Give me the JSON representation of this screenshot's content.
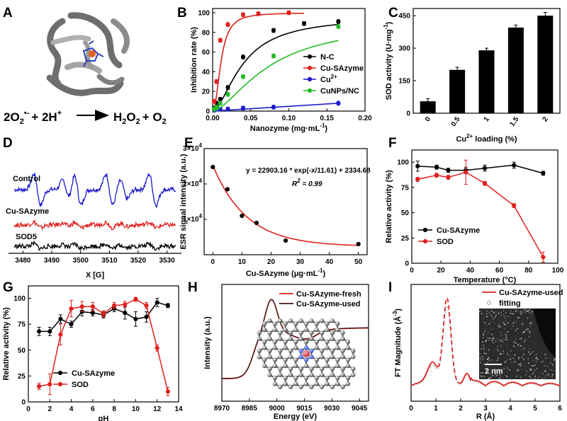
{
  "panel_letters": [
    "A",
    "B",
    "C",
    "D",
    "E",
    "F",
    "G",
    "H",
    "I"
  ],
  "colors": {
    "black": "#000000",
    "red": "#e0201e",
    "blue": "#1a1acc",
    "green": "#22bb22",
    "brown": "#4a1414",
    "grey": "#999999"
  },
  "panelA": {
    "equation": {
      "lhs_a": "2O",
      "lhs_a_sub": "2",
      "lhs_a_sup": "•-",
      "lhs_plus": "+ 2H",
      "lhs_b_sup": "+",
      "rhs_a": "H",
      "rhs_a_sub1": "2",
      "rhs_a_mid": "O",
      "rhs_a_sub2": "2",
      "rhs_plus": "+ O",
      "rhs_b_sub": "2"
    }
  },
  "chart_data": [
    {
      "id": "B",
      "type": "scatter",
      "xlabel": "Nanozyme (mg·mL",
      "xlabel_sup": "-1",
      "xlabel_end": ")",
      "ylabel": "Inhibition rate (%)",
      "xlim": [
        0,
        0.2
      ],
      "ylim": [
        0,
        100
      ],
      "xticks": [
        0.0,
        0.05,
        0.1,
        0.15,
        0.2
      ],
      "xtick_labels": [
        "0.00",
        "0.05",
        "0.10",
        "0.15",
        "0.20"
      ],
      "yticks": [
        0,
        20,
        40,
        60,
        80,
        100
      ],
      "ytick_labels": [
        "0",
        "20",
        "40",
        "60",
        "80",
        "100"
      ],
      "legend": [
        "N-C",
        "Cu-SAzyme",
        "Cu",
        "CuNPs/NC"
      ],
      "legend_sup": [
        "",
        "",
        "2+",
        ""
      ],
      "series": [
        {
          "name": "N-C",
          "color": "#000000",
          "x": [
            0.002,
            0.005,
            0.01,
            0.02,
            0.04,
            0.08,
            0.12,
            0.165
          ],
          "y": [
            3,
            8,
            12,
            24,
            55,
            82,
            89,
            91
          ]
        },
        {
          "name": "Cu-SAzyme",
          "color": "#e0201e",
          "x": [
            0.002,
            0.005,
            0.01,
            0.02,
            0.04,
            0.06,
            0.1
          ],
          "y": [
            10,
            30,
            72,
            88,
            98,
            99,
            100
          ]
        },
        {
          "name": "Cu2+",
          "color": "#1a1acc",
          "x": [
            0.002,
            0.01,
            0.02,
            0.04,
            0.08,
            0.165
          ],
          "y": [
            1,
            2,
            2,
            3,
            4,
            8
          ]
        },
        {
          "name": "CuNPs/NC",
          "color": "#22bb22",
          "x": [
            0.002,
            0.005,
            0.01,
            0.02,
            0.04,
            0.08,
            0.165
          ],
          "y": [
            2,
            4,
            8,
            17,
            35,
            56,
            86
          ]
        }
      ],
      "error_bar_top": [
        null,
        3,
        null,
        null,
        null,
        null,
        8
      ]
    },
    {
      "id": "C",
      "type": "bar",
      "xlabel": "Cu",
      "xlabel_sup": "2+",
      "xlabel_end": " loading (%)",
      "ylabel": "SOD activity (U·mg",
      "ylabel_sup": "-1",
      "ylabel_end": ")",
      "categories": [
        "0",
        "0.5",
        "1",
        "1.5",
        "2"
      ],
      "values": [
        55,
        200,
        290,
        395,
        450
      ],
      "errors": [
        12,
        12,
        10,
        12,
        15
      ],
      "ylim": [
        0,
        470
      ],
      "yticks": [
        0,
        150,
        300,
        450
      ],
      "ytick_labels": [
        "0",
        "150",
        "300",
        "450"
      ]
    },
    {
      "id": "D",
      "type": "line",
      "xlabel": "X [G]",
      "xlim": [
        3475,
        3535
      ],
      "xticks": [
        3480,
        3490,
        3500,
        3510,
        3520,
        3530
      ],
      "xtick_labels": [
        "3480",
        "3490",
        "3500",
        "3510",
        "3520",
        "3530"
      ],
      "series": [
        {
          "name": "Control",
          "color": "#1a1acc",
          "amplitude": 1.0
        },
        {
          "name": "Cu-SAzyme",
          "color": "#e0201e",
          "amplitude": 0.18
        },
        {
          "name": "SOD5",
          "color": "#000000",
          "amplitude": 0.15
        }
      ],
      "esr_lines": [
        3485,
        3495,
        3499,
        3510,
        3515,
        3525
      ]
    },
    {
      "id": "E",
      "type": "scatter",
      "xlabel": "Cu-SAzyme (μg·mL",
      "xlabel_sup": "-1",
      "xlabel_end": ")",
      "ylabel": "ESR signal intensity (a.u.)",
      "xlim": [
        -3,
        53
      ],
      "ylim": [
        0,
        30000
      ],
      "xticks": [
        0,
        10,
        20,
        30,
        40,
        50
      ],
      "xtick_labels": [
        "0",
        "10",
        "20",
        "30",
        "40",
        "50"
      ],
      "yticks": [
        10000,
        20000,
        30000
      ],
      "ytick_labels": [
        "1×10",
        "2×10",
        "3×10"
      ],
      "ytick_sup": "4",
      "x": [
        0,
        5,
        10,
        15,
        25,
        50
      ],
      "y": [
        24800,
        18500,
        11000,
        9000,
        4000,
        3000
      ],
      "fit": {
        "a": 22903.16,
        "tau": 11.61,
        "c": 2334.68
      },
      "equation": "y = 22903.16 * exp(-x/11.61) + 2334.68",
      "r2_label": "R",
      "r2_sup": "2",
      "r2_value": " = 0.99"
    },
    {
      "id": "F",
      "type": "line",
      "xlabel": "Temperature (°C)",
      "ylabel": "Relative activity (%)",
      "xlim": [
        0,
        100
      ],
      "ylim": [
        0,
        112
      ],
      "xticks": [
        0,
        20,
        40,
        60,
        80,
        100
      ],
      "xtick_labels": [
        "0",
        "20",
        "40",
        "60",
        "80",
        "100"
      ],
      "yticks": [
        0,
        25,
        50,
        75,
        100
      ],
      "ytick_labels": [
        "0",
        "25",
        "50",
        "75",
        "100"
      ],
      "legend": [
        "Cu-SAzyme",
        "SOD"
      ],
      "series": [
        {
          "name": "Cu-SAzyme",
          "color": "#000000",
          "x": [
            4,
            17,
            25,
            37,
            50,
            70,
            90
          ],
          "y": [
            96,
            95,
            92,
            92,
            94,
            97,
            89
          ],
          "err": [
            5,
            2,
            2,
            3,
            3,
            3,
            2
          ]
        },
        {
          "name": "SOD",
          "color": "#e0201e",
          "x": [
            4,
            17,
            25,
            37,
            50,
            70,
            90
          ],
          "y": [
            83,
            87,
            85,
            90,
            79,
            57,
            6
          ],
          "err": [
            2,
            2,
            2,
            12,
            2,
            2,
            5
          ]
        }
      ]
    },
    {
      "id": "G",
      "type": "line",
      "xlabel": "pH",
      "ylabel": "Relative activity (%)",
      "xlim": [
        0,
        14
      ],
      "ylim": [
        0,
        112
      ],
      "xticks": [
        0,
        2,
        4,
        6,
        8,
        10,
        12,
        14
      ],
      "xtick_labels": [
        "0",
        "2",
        "4",
        "6",
        "8",
        "10",
        "12",
        "14"
      ],
      "yticks": [
        0,
        25,
        50,
        75,
        100
      ],
      "ytick_labels": [
        "0",
        "25",
        "50",
        "75",
        "100"
      ],
      "legend": [
        "Cu-SAzyme",
        "SOD"
      ],
      "series": [
        {
          "name": "Cu-SAzyme",
          "color": "#000000",
          "x": [
            1,
            2,
            3,
            4,
            5,
            6,
            7,
            8,
            9,
            10,
            11,
            12,
            13
          ],
          "y": [
            68,
            68,
            80,
            75,
            87,
            86,
            84,
            90,
            86,
            80,
            82,
            96,
            93
          ],
          "err": [
            4,
            4,
            4,
            3,
            4,
            3,
            3,
            3,
            6,
            7,
            5,
            4,
            2
          ]
        },
        {
          "name": "SOD",
          "color": "#e0201e",
          "x": [
            1,
            2,
            3,
            4,
            5,
            6,
            7,
            8,
            9,
            10,
            11,
            12,
            13
          ],
          "y": [
            15,
            17,
            65,
            90,
            92,
            92,
            85,
            93,
            94,
            99,
            93,
            52,
            10
          ],
          "err": [
            3,
            10,
            10,
            8,
            5,
            4,
            3,
            3,
            3,
            2,
            3,
            3,
            4
          ]
        }
      ]
    },
    {
      "id": "H",
      "type": "line",
      "xlabel": "Energy (eV)",
      "ylabel": "Intensity (a.u.)",
      "xlim": [
        8970,
        9050
      ],
      "xticks": [
        8970,
        8985,
        9000,
        9015,
        9030,
        9045
      ],
      "xtick_labels": [
        "8970",
        "8985",
        "9000",
        "9015",
        "9030",
        "9045"
      ],
      "legend": [
        "Cu-SAzyme-fresh",
        "Cu-SAzyme-used"
      ],
      "series": [
        {
          "name": "Cu-SAzyme-fresh",
          "color": "#e0201e"
        },
        {
          "name": "Cu-SAzyme-used",
          "color": "#4a1414"
        }
      ]
    },
    {
      "id": "I",
      "type": "line",
      "xlabel": "R (Å)",
      "ylabel": "FT Magnitude (Å",
      "ylabel_sup": "-3",
      "ylabel_end": ")",
      "xlim": [
        0,
        6
      ],
      "xticks": [
        0,
        1,
        2,
        3,
        4,
        5,
        6
      ],
      "xtick_labels": [
        "0",
        "1",
        "2",
        "3",
        "4",
        "5",
        "6"
      ],
      "legend": [
        "Cu-SAzyme-used",
        "fitting"
      ],
      "inset_scale": "2 nm",
      "series": [
        {
          "name": "Cu-SAzyme-used",
          "color": "#e0201e"
        },
        {
          "name": "fitting",
          "color": "#999999"
        }
      ]
    }
  ]
}
